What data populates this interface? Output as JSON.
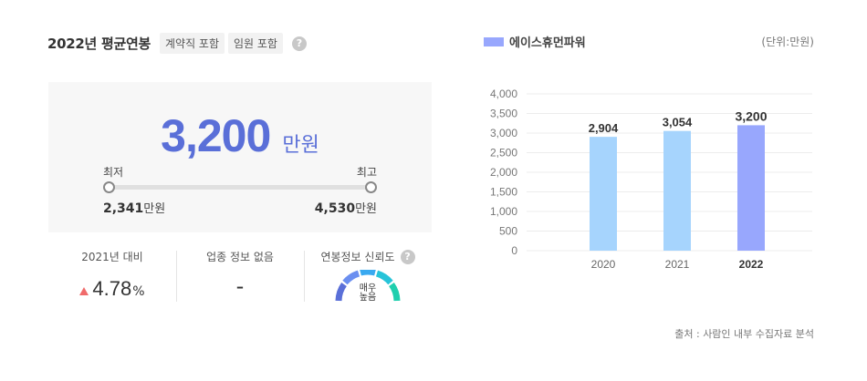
{
  "header": {
    "title": "2022년 평균연봉",
    "tags": [
      "계약직 포함",
      "임원 포함"
    ],
    "help_icon": "?"
  },
  "salary": {
    "value": "3,200",
    "unit": "만원",
    "min_label": "최저",
    "max_label": "최고",
    "min_value": "2,341",
    "max_value": "4,530",
    "range_unit": "만원"
  },
  "stats": {
    "compare_label": "2021년 대비",
    "change_value": "4.78",
    "change_pct": "%",
    "industry_label": "업종 정보 없음",
    "industry_value": "-",
    "reliability_label": "연봉정보 신뢰도",
    "reliability_line1": "매우",
    "reliability_line2": "높음",
    "reliability_level": 1.0
  },
  "chart": {
    "legend": "에이스휴먼파워",
    "unit": "(단위:만원)",
    "source": "출처 : 사람인 내부 수집자료 분석"
  },
  "chart_data": {
    "type": "bar",
    "categories": [
      "2020",
      "2021",
      "2022"
    ],
    "values": [
      2904,
      3054,
      3200
    ],
    "value_labels": [
      "2,904",
      "3,054",
      "3,200"
    ],
    "highlight_index": 2,
    "ylim": [
      0,
      4000
    ],
    "yticks": [
      "0",
      "500",
      "1,000",
      "1,500",
      "2,000",
      "2,500",
      "3,000",
      "3,500",
      "4,000"
    ],
    "ytick_values": [
      0,
      500,
      1000,
      1500,
      2000,
      2500,
      3000,
      3500,
      4000
    ],
    "colors": {
      "normal": "#a6d4fd",
      "highlight": "#98a7fd",
      "grid": "#ececec"
    },
    "grid": true,
    "legend_position": "top-left"
  }
}
